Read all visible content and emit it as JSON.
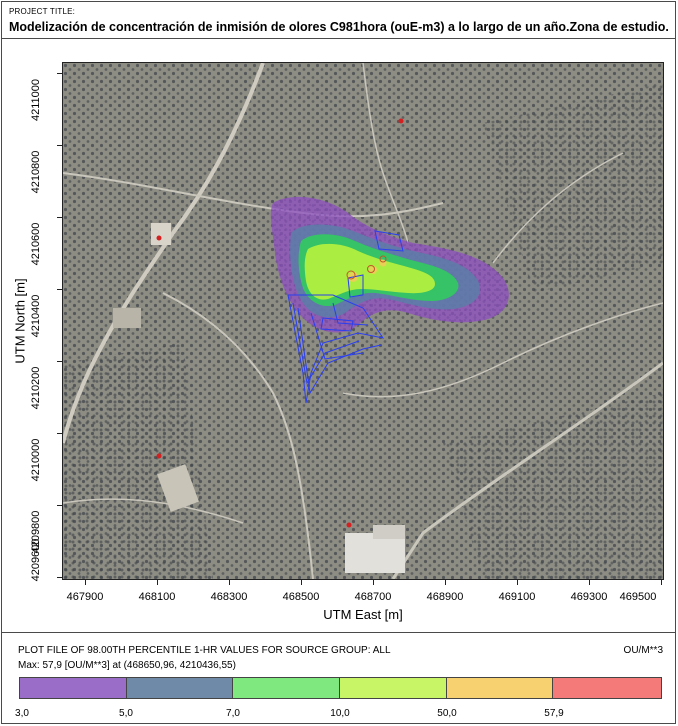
{
  "header": {
    "project_label": "PROJECT TITLE:",
    "project_title": "Modelización de concentración de inmisión de olores C981hora (ouE-m3) a lo largo de un año.Zona de estudio."
  },
  "axes": {
    "x_label": "UTM East [m]",
    "y_label": "UTM North [m]",
    "x_ticks": [
      "467900",
      "468100",
      "468300",
      "468500",
      "468700",
      "468900",
      "469100",
      "469300",
      "469500"
    ],
    "y_ticks": [
      "4211000",
      "4210800",
      "4210600",
      "4210400",
      "4210200",
      "4210000",
      "4209800",
      "4209600"
    ]
  },
  "map": {
    "base_colors": {
      "terrain": "#8e8d84",
      "olive_dots": "#4a4f52",
      "paths": "#c9c6bc"
    },
    "contour_colors": [
      "#8c4fc0",
      "#5b7ea8",
      "#2fcf5a",
      "#b8f23c",
      "#f4c95a"
    ],
    "source_outline_color": "#2a3ff0",
    "receptor_color": "#d42020"
  },
  "legend": {
    "plot_description": "PLOT FILE OF 98.00TH PERCENTILE 1-HR VALUES FOR SOURCE GROUP: ALL",
    "units": "OU/M**3",
    "max_text": "Max:  57,9  [OU/M**3]  at  (468650,96, 4210436,55)",
    "bins": [
      {
        "color": "#9a6ec8"
      },
      {
        "color": "#6f8aa8"
      },
      {
        "color": "#7fe87f"
      },
      {
        "color": "#c8f566"
      },
      {
        "color": "#f7d070"
      },
      {
        "color": "#f47a7a"
      }
    ],
    "bin_labels": [
      "3,0",
      "5,0",
      "7,0",
      "10,0",
      "50,0",
      "57,9"
    ]
  }
}
